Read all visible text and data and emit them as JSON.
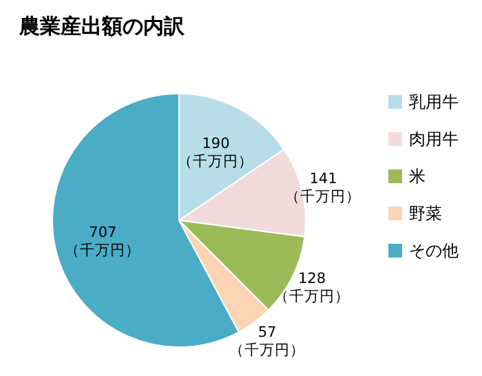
{
  "chart_data": {
    "type": "pie",
    "title": "農業産出額の内訳",
    "categories": [
      "乳用牛",
      "肉用牛",
      "米",
      "野菜",
      "その他"
    ],
    "values": [
      190,
      141,
      128,
      57,
      707
    ],
    "colors": [
      "#b7dee8",
      "#f2dcdb",
      "#9bbb59",
      "#fcd5b5",
      "#4bacc6"
    ],
    "value_labels": [
      "190（千万円）",
      "141（千万円）",
      "128（千万円）",
      "57（千万円）",
      "707（千万円）"
    ],
    "legend": "right"
  }
}
